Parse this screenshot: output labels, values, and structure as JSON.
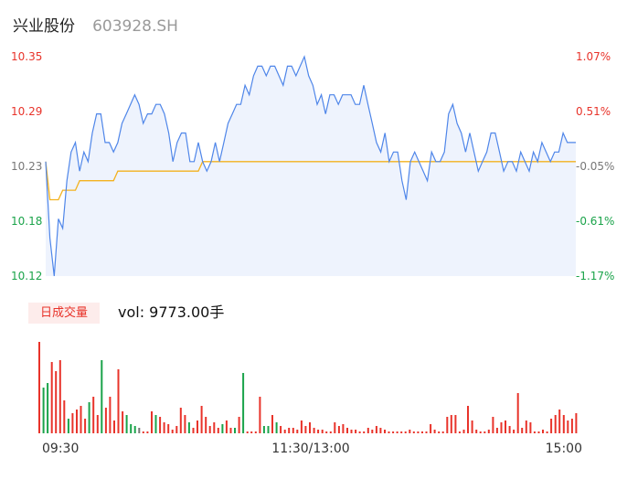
{
  "header": {
    "name": "兴业股份",
    "code": "603928.SH"
  },
  "volume_panel": {
    "tag": "日成交量",
    "readout": "vol: 9773.00手"
  },
  "colors": {
    "up": "#e8332a",
    "down": "#1aa34a",
    "neutral": "#777777",
    "price_line": "#4f86e9",
    "avg_line": "#f3b21f",
    "area_fill": "#eef3fd"
  },
  "chart_data": [
    {
      "type": "line",
      "title": "",
      "y_ticks": [
        "10.35",
        "10.29",
        "10.23",
        "10.18",
        "10.12"
      ],
      "pct_ticks": [
        "1.07%",
        "0.51%",
        "-0.05%",
        "-0.61%",
        "-1.17%"
      ],
      "x_ticks": [
        "09:30",
        "11:30/13:00",
        "15:00"
      ],
      "ylim": [
        10.12,
        10.35
      ],
      "series": [
        {
          "values": [
            10.24,
            10.16,
            10.12,
            10.18,
            10.17,
            10.22,
            10.25,
            10.26,
            10.23,
            10.25,
            10.24,
            10.27,
            10.29,
            10.29,
            10.26,
            10.26,
            10.25,
            10.26,
            10.28,
            10.29,
            10.3,
            10.31,
            10.3,
            10.28,
            10.29,
            10.29,
            10.3,
            10.3,
            10.29,
            10.27,
            10.24,
            10.26,
            10.27,
            10.27,
            10.24,
            10.24,
            10.26,
            10.24,
            10.23,
            10.24,
            10.26,
            10.24,
            10.26,
            10.28,
            10.29,
            10.3,
            10.3,
            10.32,
            10.31,
            10.33,
            10.34,
            10.34,
            10.33,
            10.34,
            10.34,
            10.33,
            10.32,
            10.34,
            10.34,
            10.33,
            10.34,
            10.35,
            10.33,
            10.32,
            10.3,
            10.31,
            10.29,
            10.31,
            10.31,
            10.3,
            10.31,
            10.31,
            10.31,
            10.3,
            10.3,
            10.32,
            10.3,
            10.28,
            10.26,
            10.25,
            10.27,
            10.24,
            10.25,
            10.25,
            10.22,
            10.2,
            10.24,
            10.25,
            10.24,
            10.23,
            10.22,
            10.25,
            10.24,
            10.24,
            10.25,
            10.29,
            10.3,
            10.28,
            10.27,
            10.25,
            10.27,
            10.25,
            10.23,
            10.24,
            10.25,
            10.27,
            10.27,
            10.25,
            10.23,
            10.24,
            10.24,
            10.23,
            10.25,
            10.24,
            10.23,
            10.25,
            10.24,
            10.26,
            10.25,
            10.24,
            10.25,
            10.25,
            10.27,
            10.26,
            10.26,
            10.26
          ],
          "avg": [
            10.24,
            10.2,
            10.2,
            10.2,
            10.21,
            10.21,
            10.21,
            10.21,
            10.22,
            10.22,
            10.22,
            10.22,
            10.22,
            10.22,
            10.22,
            10.22,
            10.22,
            10.23,
            10.23,
            10.23,
            10.23,
            10.23,
            10.23,
            10.23,
            10.23,
            10.23,
            10.23,
            10.23,
            10.23,
            10.23,
            10.23,
            10.23,
            10.23,
            10.23,
            10.23,
            10.23,
            10.23,
            10.24,
            10.24,
            10.24,
            10.24,
            10.24,
            10.24,
            10.24,
            10.24,
            10.24,
            10.24,
            10.24,
            10.24,
            10.24,
            10.24,
            10.24,
            10.24,
            10.24,
            10.24,
            10.24,
            10.24,
            10.24,
            10.24,
            10.24,
            10.24,
            10.24,
            10.24,
            10.24,
            10.24,
            10.24,
            10.24,
            10.24,
            10.24,
            10.24,
            10.24,
            10.24,
            10.24,
            10.24,
            10.24,
            10.24,
            10.24,
            10.24,
            10.24,
            10.24,
            10.24,
            10.24,
            10.24,
            10.24,
            10.24,
            10.24,
            10.24,
            10.24,
            10.24,
            10.24,
            10.24,
            10.24,
            10.24,
            10.24,
            10.24,
            10.24,
            10.24,
            10.24,
            10.24,
            10.24,
            10.24,
            10.24,
            10.24,
            10.24,
            10.24,
            10.24,
            10.24,
            10.24,
            10.24,
            10.24,
            10.24,
            10.24,
            10.24,
            10.24,
            10.24,
            10.24,
            10.24,
            10.24,
            10.24,
            10.24,
            10.24,
            10.24,
            10.24,
            10.24,
            10.24,
            10.24
          ]
        }
      ]
    },
    {
      "type": "bar",
      "title": "",
      "series": [
        {
          "values": [
            100,
            50,
            55,
            78,
            68,
            80,
            36,
            16,
            22,
            26,
            30,
            16,
            34,
            40,
            20,
            80,
            28,
            40,
            14,
            70,
            24,
            20,
            10,
            8,
            6,
            2,
            2,
            24,
            20,
            18,
            12,
            10,
            4,
            8,
            28,
            20,
            12,
            6,
            14,
            30,
            18,
            8,
            12,
            6,
            10,
            14,
            6,
            6,
            18,
            66,
            2,
            2,
            2,
            40,
            8,
            8,
            20,
            12,
            8,
            4,
            6,
            6,
            4,
            14,
            8,
            12,
            6,
            4,
            4,
            2,
            2,
            12,
            8,
            10,
            6,
            4,
            4,
            2,
            2,
            6,
            4,
            8,
            6,
            4,
            2,
            2,
            2,
            2,
            2,
            4,
            2,
            2,
            2,
            2,
            10,
            4,
            2,
            2,
            18,
            20,
            20,
            2,
            4,
            30,
            14,
            4,
            2,
            2,
            4,
            18,
            6,
            12,
            14,
            8,
            4,
            44,
            6,
            14,
            12,
            2,
            2,
            4,
            2,
            16,
            20,
            26,
            20,
            14,
            16,
            22
          ]
        }
      ],
      "colors": [
        "up",
        "down",
        "down",
        "up",
        "up",
        "up",
        "up",
        "down",
        "up",
        "up",
        "up",
        "up",
        "down",
        "up",
        "up",
        "down",
        "up",
        "up",
        "up",
        "up",
        "up",
        "down",
        "down",
        "down",
        "neutral",
        "up",
        "up",
        "up",
        "down",
        "up",
        "up",
        "up",
        "up",
        "up",
        "up",
        "up",
        "down",
        "up",
        "up",
        "up",
        "up",
        "up",
        "up",
        "up",
        "down",
        "up",
        "up",
        "down",
        "up",
        "down",
        "up",
        "up",
        "up",
        "up",
        "down",
        "down",
        "up",
        "down",
        "up",
        "up",
        "up",
        "up",
        "up",
        "up",
        "up",
        "up",
        "up",
        "up",
        "up",
        "up",
        "up",
        "up",
        "up",
        "up",
        "up",
        "up",
        "up",
        "up",
        "up",
        "up",
        "up",
        "up",
        "up",
        "up",
        "up",
        "up",
        "up",
        "up",
        "up",
        "up",
        "up",
        "up",
        "up",
        "up",
        "up",
        "up",
        "up",
        "up",
        "up",
        "up",
        "up",
        "up",
        "up",
        "up",
        "up",
        "up",
        "up",
        "up",
        "up",
        "up",
        "up",
        "up",
        "up",
        "up",
        "up",
        "up",
        "up",
        "up",
        "up",
        "up",
        "up",
        "up",
        "up",
        "up",
        "up",
        "up",
        "up",
        "up",
        "up",
        "up"
      ]
    }
  ]
}
